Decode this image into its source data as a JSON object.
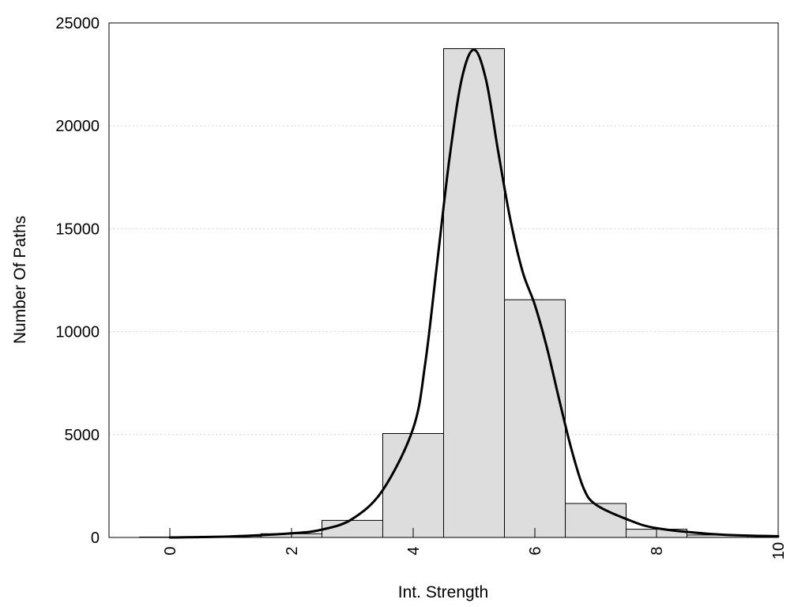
{
  "chart_data": {
    "type": "bar",
    "title": "",
    "xlabel": "Int. Strength",
    "ylabel": "Number Of Paths",
    "xlim": [
      -1,
      10
    ],
    "ylim": [
      0,
      25000
    ],
    "x_ticks": [
      0,
      2,
      4,
      6,
      8,
      10
    ],
    "x_tick_labels": [
      "0",
      "2",
      "4",
      "6",
      "8",
      "10"
    ],
    "y_ticks": [
      0,
      5000,
      10000,
      15000,
      20000,
      25000
    ],
    "y_tick_labels": [
      "0",
      "5000",
      "10000",
      "15000",
      "20000",
      "25000"
    ],
    "grid": "horizontal",
    "legend": "none",
    "bar_color": "#dddddd",
    "curve_color": "#000000",
    "bars": [
      {
        "x": 0,
        "value": 20
      },
      {
        "x": 1,
        "value": 60
      },
      {
        "x": 2,
        "value": 180
      },
      {
        "x": 3,
        "value": 830
      },
      {
        "x": 4,
        "value": 5050
      },
      {
        "x": 5,
        "value": 23750
      },
      {
        "x": 6,
        "value": 11550
      },
      {
        "x": 7,
        "value": 1650
      },
      {
        "x": 8,
        "value": 400
      },
      {
        "x": 9,
        "value": 120
      },
      {
        "x": 10,
        "value": 80
      }
    ],
    "curve": [
      {
        "x": 0,
        "y": 0
      },
      {
        "x": 1,
        "y": 50
      },
      {
        "x": 2,
        "y": 200
      },
      {
        "x": 2.5,
        "y": 380
      },
      {
        "x": 3,
        "y": 900
      },
      {
        "x": 3.5,
        "y": 2300
      },
      {
        "x": 4,
        "y": 5300
      },
      {
        "x": 4.2,
        "y": 8500
      },
      {
        "x": 4.4,
        "y": 13500
      },
      {
        "x": 4.6,
        "y": 18500
      },
      {
        "x": 4.8,
        "y": 22300
      },
      {
        "x": 5,
        "y": 23700
      },
      {
        "x": 5.2,
        "y": 22200
      },
      {
        "x": 5.4,
        "y": 18700
      },
      {
        "x": 5.6,
        "y": 15400
      },
      {
        "x": 5.8,
        "y": 12900
      },
      {
        "x": 6,
        "y": 11300
      },
      {
        "x": 6.2,
        "y": 9200
      },
      {
        "x": 6.4,
        "y": 6700
      },
      {
        "x": 6.6,
        "y": 4300
      },
      {
        "x": 6.8,
        "y": 2400
      },
      {
        "x": 7,
        "y": 1600
      },
      {
        "x": 7.5,
        "y": 900
      },
      {
        "x": 8,
        "y": 450
      },
      {
        "x": 9,
        "y": 150
      },
      {
        "x": 10,
        "y": 60
      }
    ]
  }
}
